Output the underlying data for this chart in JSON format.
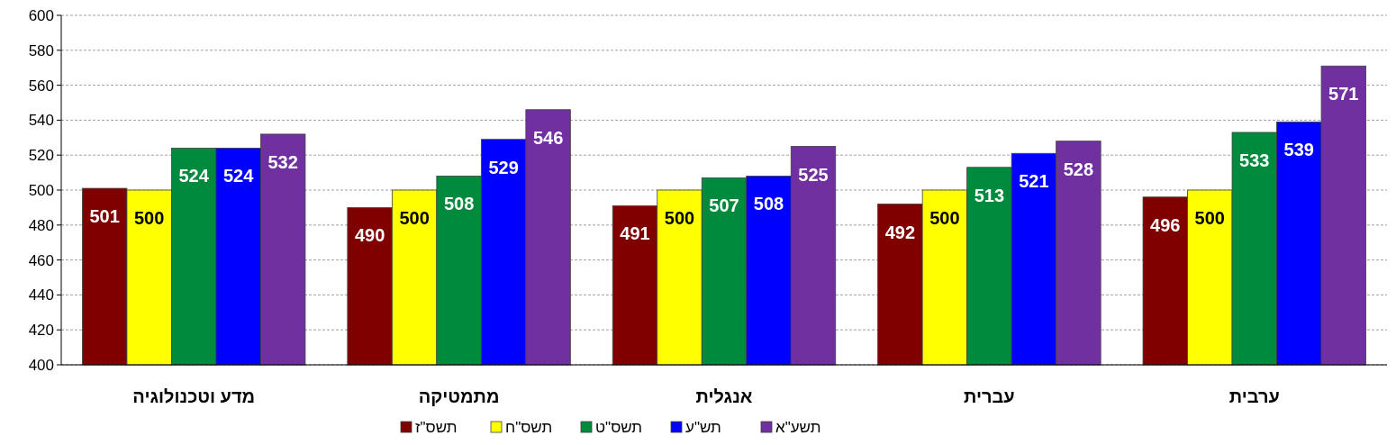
{
  "chart_data": {
    "type": "bar",
    "categories": [
      "מדע וטכנולוגיה",
      "מתמטיקה",
      "אנגלית",
      "עברית",
      "ערבית"
    ],
    "series": [
      {
        "name": "תשס\"ז",
        "color": "#800000",
        "values": [
          501,
          490,
          491,
          492,
          496
        ]
      },
      {
        "name": "תשס\"ח",
        "color": "#ffff00",
        "values": [
          500,
          500,
          500,
          500,
          500
        ]
      },
      {
        "name": "תשס\"ט",
        "color": "#008a3e",
        "values": [
          524,
          508,
          507,
          513,
          533
        ]
      },
      {
        "name": "תש\"ע",
        "color": "#0000ff",
        "values": [
          524,
          529,
          508,
          521,
          539
        ]
      },
      {
        "name": "תשע\"א",
        "color": "#7030a0",
        "values": [
          532,
          546,
          525,
          528,
          571
        ]
      }
    ],
    "ylim": [
      400,
      600
    ],
    "yticks": [
      400,
      420,
      440,
      460,
      480,
      500,
      520,
      540,
      560,
      580,
      600
    ],
    "grid": "y",
    "legend": "bottom",
    "data_labels": true
  }
}
